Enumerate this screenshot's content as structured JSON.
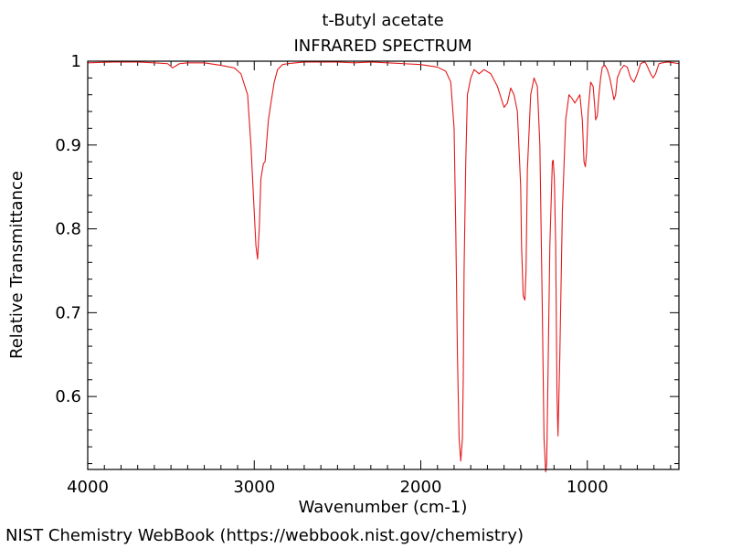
{
  "footer": "NIST Chemistry WebBook (https://webbook.nist.gov/chemistry)",
  "chart_data": {
    "type": "line",
    "title": "t-Butyl acetate",
    "subtitle": "INFRARED SPECTRUM",
    "xlabel": "Wavenumber (cm-1)",
    "ylabel": "Relative Transmittance",
    "xlim": [
      4000,
      450
    ],
    "ylim": [
      0.513,
      1.0
    ],
    "x_reversed": true,
    "x_ticks": [
      4000,
      3000,
      2000,
      1000
    ],
    "x_tick_labels": [
      "4000",
      "3000",
      "2000",
      "1000"
    ],
    "y_ticks": [
      1.0,
      0.9,
      0.8,
      0.7,
      0.6
    ],
    "y_tick_labels": [
      "1",
      "0.9",
      "0.8",
      "0.7",
      "0.6"
    ],
    "grid": false,
    "line_color": "#e31a1c",
    "series": [
      {
        "x": [
          4000,
          3850,
          3700,
          3600,
          3520,
          3490,
          3450,
          3400,
          3300,
          3200,
          3120,
          3080,
          3040,
          3020,
          3000,
          2990,
          2980,
          2970,
          2960,
          2945,
          2935,
          2925,
          2915,
          2900,
          2880,
          2860,
          2830,
          2800,
          2750,
          2700,
          2600,
          2500,
          2400,
          2300,
          2200,
          2100,
          2000,
          1900,
          1850,
          1820,
          1800,
          1790,
          1780,
          1770,
          1760,
          1750,
          1745,
          1740,
          1730,
          1720,
          1700,
          1680,
          1650,
          1620,
          1580,
          1540,
          1500,
          1480,
          1460,
          1440,
          1420,
          1400,
          1395,
          1385,
          1375,
          1368,
          1360,
          1340,
          1320,
          1300,
          1285,
          1270,
          1260,
          1250,
          1244,
          1238,
          1225,
          1210,
          1205,
          1198,
          1190,
          1182,
          1176,
          1165,
          1150,
          1130,
          1110,
          1090,
          1075,
          1060,
          1045,
          1030,
          1020,
          1012,
          1005,
          995,
          980,
          965,
          955,
          950,
          940,
          930,
          920,
          910,
          895,
          880,
          865,
          850,
          840,
          830,
          820,
          800,
          780,
          760,
          740,
          720,
          700,
          680,
          660,
          650,
          640,
          620,
          605,
          590,
          570,
          550,
          520,
          480,
          450
        ],
        "y": [
          0.998,
          0.999,
          0.999,
          0.998,
          0.997,
          0.992,
          0.997,
          0.998,
          0.998,
          0.995,
          0.992,
          0.985,
          0.96,
          0.9,
          0.82,
          0.78,
          0.764,
          0.8,
          0.86,
          0.878,
          0.88,
          0.905,
          0.93,
          0.95,
          0.975,
          0.99,
          0.996,
          0.997,
          0.998,
          0.999,
          0.999,
          0.999,
          0.998,
          0.999,
          0.998,
          0.997,
          0.996,
          0.993,
          0.988,
          0.975,
          0.92,
          0.8,
          0.65,
          0.55,
          0.523,
          0.55,
          0.62,
          0.75,
          0.88,
          0.96,
          0.98,
          0.99,
          0.985,
          0.99,
          0.985,
          0.97,
          0.945,
          0.95,
          0.968,
          0.96,
          0.94,
          0.85,
          0.78,
          0.72,
          0.715,
          0.75,
          0.87,
          0.96,
          0.98,
          0.97,
          0.9,
          0.7,
          0.55,
          0.51,
          0.52,
          0.6,
          0.78,
          0.88,
          0.882,
          0.86,
          0.78,
          0.6,
          0.553,
          0.65,
          0.82,
          0.93,
          0.96,
          0.955,
          0.95,
          0.955,
          0.96,
          0.93,
          0.88,
          0.874,
          0.89,
          0.94,
          0.975,
          0.97,
          0.945,
          0.93,
          0.935,
          0.96,
          0.98,
          0.993,
          0.995,
          0.99,
          0.98,
          0.965,
          0.954,
          0.96,
          0.98,
          0.99,
          0.995,
          0.993,
          0.98,
          0.975,
          0.985,
          0.997,
          0.999,
          0.998,
          0.994,
          0.985,
          0.98,
          0.985,
          0.997,
          0.998,
          0.999,
          0.998,
          0.997
        ]
      }
    ]
  }
}
